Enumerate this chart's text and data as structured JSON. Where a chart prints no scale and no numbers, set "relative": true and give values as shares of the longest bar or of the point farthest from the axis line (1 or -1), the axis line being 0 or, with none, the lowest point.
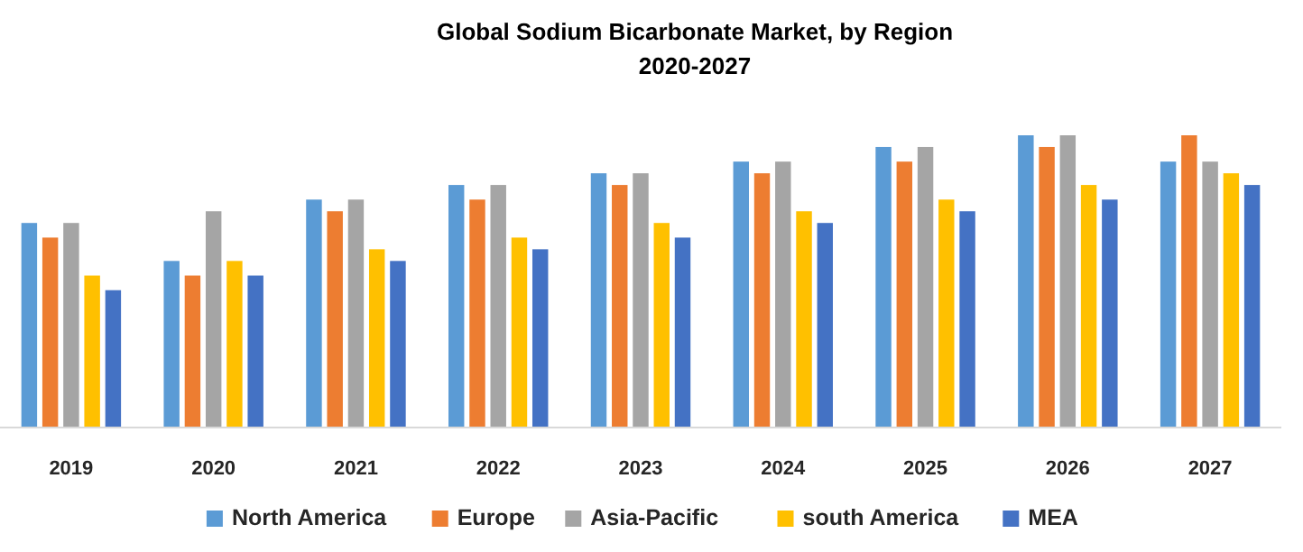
{
  "chart_data": {
    "type": "bar",
    "title": "Global Sodium Bicarbonate Market, by Region\n2020-2027",
    "relative": true,
    "legend": "bottom",
    "categories": [
      "2019",
      "2020",
      "2021",
      "2022",
      "2023",
      "2024",
      "2025",
      "2026",
      "2027"
    ],
    "series": [
      {
        "name": "North America",
        "color": "#5b9bd5",
        "values": [
          0.7,
          0.57,
          0.78,
          0.83,
          0.87,
          0.91,
          0.96,
          1,
          0.91
        ]
      },
      {
        "name": "Europe",
        "color": "#ed7d31",
        "values": [
          0.65,
          0.52,
          0.74,
          0.78,
          0.83,
          0.87,
          0.91,
          0.96,
          1
        ]
      },
      {
        "name": "Asia-Pacific",
        "color": "#a5a5a5",
        "values": [
          0.7,
          0.74,
          0.78,
          0.83,
          0.87,
          0.91,
          0.96,
          1,
          0.91
        ]
      },
      {
        "name": "south America",
        "color": "#ffc000",
        "values": [
          0.52,
          0.57,
          0.61,
          0.65,
          0.7,
          0.74,
          0.78,
          0.83,
          0.87
        ]
      },
      {
        "name": "MEA",
        "color": "#4472c4",
        "values": [
          0.47,
          0.52,
          0.57,
          0.61,
          0.65,
          0.7,
          0.74,
          0.78,
          0.83
        ]
      }
    ]
  }
}
